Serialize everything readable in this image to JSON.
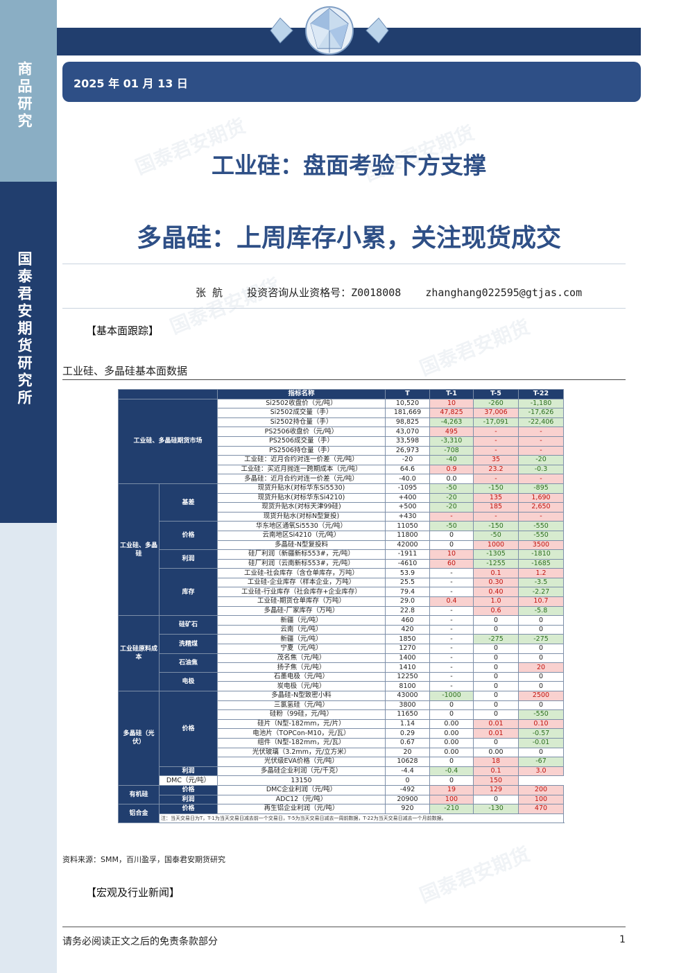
{
  "sidebar": {
    "category": "商品研究",
    "institute": "国泰君安期货研究所"
  },
  "header": {
    "date": "2025 年 01 月 13 日"
  },
  "titles": {
    "main": "工业硅：盘面考验下方支撑",
    "sub": "多晶硅：上周库存小累，关注现货成交"
  },
  "author": {
    "name": "张    航",
    "license": "投资咨询从业资格号：Z0018008",
    "email": "zhanghang022595@gtjas.com"
  },
  "watermark": "国泰君安期货",
  "sections": {
    "fundamentals": "【基本面跟踪】",
    "news": "【宏观及行业新闻】"
  },
  "table": {
    "title": "工业硅、多晶硅基本面数据",
    "headers": [
      "指标名称",
      "T",
      "T-1",
      "T-5",
      "T-22"
    ],
    "rows": [
      {
        "ind": "Si2502收盘价（元/吨）",
        "t": "10,520",
        "t1": "10",
        "t5": "-260",
        "t22": "-1,180",
        "c": [
          "r",
          "g",
          "g"
        ]
      },
      {
        "ind": "Si2502成交量（手）",
        "t": "181,669",
        "t1": "47,825",
        "t5": "37,006",
        "t22": "-17,626",
        "c": [
          "r",
          "r",
          "g"
        ]
      },
      {
        "ind": "Si2502持仓量（手）",
        "t": "98,825",
        "t1": "-4,263",
        "t5": "-17,091",
        "t22": "-22,406",
        "c": [
          "g",
          "g",
          "g"
        ]
      },
      {
        "ind": "PS2506收盘价（元/吨）",
        "t": "43,070",
        "t1": "495",
        "t5": "-",
        "t22": "-",
        "c": [
          "r",
          "r",
          "r"
        ]
      },
      {
        "ind": "PS2506成交量（手）",
        "t": "33,598",
        "t1": "-3,310",
        "t5": "-",
        "t22": "-",
        "c": [
          "g",
          "r",
          "r"
        ]
      },
      {
        "ind": "PS2506持仓量（手）",
        "t": "26,973",
        "t1": "-708",
        "t5": "-",
        "t22": "-",
        "c": [
          "g",
          "r",
          "r"
        ]
      },
      {
        "ind": "工业硅：近月合约对连一价差（元/吨）",
        "t": "-20",
        "t1": "-40",
        "t5": "35",
        "t22": "-20",
        "c": [
          "g",
          "r",
          "g"
        ]
      },
      {
        "ind": "工业硅：买近月抛连一跨期成本（元/吨）",
        "t": "64.6",
        "t1": "0.9",
        "t5": "23.2",
        "t22": "-0.3",
        "c": [
          "r",
          "r",
          "g"
        ]
      },
      {
        "ind": "多晶硅：近月合约对连一价差（元/吨）",
        "t": "-40.0",
        "t1": "0.0",
        "t5": "-",
        "t22": "-",
        "c": [
          "w",
          "r",
          "r"
        ]
      },
      {
        "ind": "现货升贴水(对标华东Si5530)",
        "t": "-1095",
        "t1": "-50",
        "t5": "-150",
        "t22": "-895",
        "c": [
          "g",
          "g",
          "g"
        ]
      },
      {
        "ind": "现货升贴水(对标华东Si4210)",
        "t": "+400",
        "t1": "-20",
        "t5": "135",
        "t22": "1,690",
        "c": [
          "g",
          "r",
          "r"
        ]
      },
      {
        "ind": "现货升贴水(对标天津99硅)",
        "t": "+500",
        "t1": "-20",
        "t5": "185",
        "t22": "2,650",
        "c": [
          "g",
          "r",
          "r"
        ]
      },
      {
        "ind": "现货升贴水(对标N型复投)",
        "t": "+430",
        "t1": "-",
        "t5": "-",
        "t22": "-",
        "c": [
          "r",
          "r",
          "r"
        ]
      },
      {
        "ind": "华东地区通氧Si5530（元/吨）",
        "t": "11050",
        "t1": "-50",
        "t5": "-150",
        "t22": "-550",
        "c": [
          "g",
          "g",
          "g"
        ]
      },
      {
        "ind": "云南地区Si4210（元/吨）",
        "t": "11800",
        "t1": "0",
        "t5": "-50",
        "t22": "-550",
        "c": [
          "w",
          "g",
          "g"
        ]
      },
      {
        "ind": "多晶硅-N型复投料",
        "t": "42000",
        "t1": "0",
        "t5": "1000",
        "t22": "3500",
        "c": [
          "w",
          "r",
          "r"
        ]
      },
      {
        "ind": "硅厂利润（新疆新标553#，元/吨）",
        "t": "-1911",
        "t1": "10",
        "t5": "-1305",
        "t22": "-1810",
        "c": [
          "r",
          "g",
          "g"
        ]
      },
      {
        "ind": "硅厂利润（云南新标553#，元/吨）",
        "t": "-4610",
        "t1": "60",
        "t5": "-1255",
        "t22": "-1685",
        "c": [
          "r",
          "g",
          "g"
        ]
      },
      {
        "ind": "工业硅-社会库存（含仓单库存，万吨）",
        "t": "53.9",
        "t1": "-",
        "t5": "0.1",
        "t22": "1.2",
        "c": [
          "w",
          "r",
          "r"
        ]
      },
      {
        "ind": "工业硅-企业库存（样本企业，万吨）",
        "t": "25.5",
        "t1": "-",
        "t5": "0.30",
        "t22": "-3.5",
        "c": [
          "w",
          "r",
          "g"
        ]
      },
      {
        "ind": "工业硅-行业库存（社会库存+企业库存）",
        "t": "79.4",
        "t1": "-",
        "t5": "0.40",
        "t22": "-2.27",
        "c": [
          "w",
          "r",
          "g"
        ]
      },
      {
        "ind": "工业硅-期货仓单库存（万吨）",
        "t": "29.0",
        "t1": "0.4",
        "t5": "1.0",
        "t22": "10.7",
        "c": [
          "r",
          "r",
          "r"
        ]
      },
      {
        "ind": "多晶硅-厂家库存（万吨）",
        "t": "22.8",
        "t1": "-",
        "t5": "0.6",
        "t22": "-5.8",
        "c": [
          "w",
          "r",
          "g"
        ]
      },
      {
        "ind": "新疆（元/吨）",
        "t": "460",
        "t1": "-",
        "t5": "0",
        "t22": "0",
        "c": [
          "w",
          "w",
          "w"
        ]
      },
      {
        "ind": "云南（元/吨）",
        "t": "420",
        "t1": "-",
        "t5": "0",
        "t22": "0",
        "c": [
          "w",
          "w",
          "w"
        ]
      },
      {
        "ind": "新疆（元/吨）",
        "t": "1850",
        "t1": "-",
        "t5": "-275",
        "t22": "-275",
        "c": [
          "w",
          "g",
          "g"
        ]
      },
      {
        "ind": "宁夏（元/吨）",
        "t": "1270",
        "t1": "-",
        "t5": "0",
        "t22": "0",
        "c": [
          "w",
          "w",
          "w"
        ]
      },
      {
        "ind": "茂名焦（元/吨）",
        "t": "1400",
        "t1": "-",
        "t5": "0",
        "t22": "0",
        "c": [
          "w",
          "w",
          "w"
        ]
      },
      {
        "ind": "扬子焦（元/吨）",
        "t": "1410",
        "t1": "-",
        "t5": "0",
        "t22": "20",
        "c": [
          "w",
          "w",
          "r"
        ]
      },
      {
        "ind": "石墨电极（元/吨）",
        "t": "12250",
        "t1": "-",
        "t5": "0",
        "t22": "0",
        "c": [
          "w",
          "w",
          "w"
        ]
      },
      {
        "ind": "炭电极（元/吨）",
        "t": "8100",
        "t1": "-",
        "t5": "0",
        "t22": "0",
        "c": [
          "w",
          "w",
          "w"
        ]
      },
      {
        "ind": "多晶硅-N型致密小料",
        "t": "43000",
        "t1": "-1000",
        "t5": "0",
        "t22": "2500",
        "c": [
          "g",
          "w",
          "r"
        ]
      },
      {
        "ind": "三氯氢硅（元/吨）",
        "t": "3800",
        "t1": "0",
        "t5": "0",
        "t22": "0",
        "c": [
          "w",
          "w",
          "w"
        ]
      },
      {
        "ind": "硅粉（99硅，元/吨）",
        "t": "11650",
        "t1": "0",
        "t5": "0",
        "t22": "-550",
        "c": [
          "w",
          "w",
          "g"
        ]
      },
      {
        "ind": "硅片（N型-182mm，元/片）",
        "t": "1.14",
        "t1": "0.00",
        "t5": "0.01",
        "t22": "0.10",
        "c": [
          "w",
          "r",
          "r"
        ]
      },
      {
        "ind": "电池片（TOPCon-M10，元/瓦）",
        "t": "0.29",
        "t1": "0.00",
        "t5": "0.01",
        "t22": "-0.57",
        "c": [
          "w",
          "r",
          "g"
        ]
      },
      {
        "ind": "组件（N型-182mm，元/瓦）",
        "t": "0.67",
        "t1": "0.00",
        "t5": "0",
        "t22": "-0.01",
        "c": [
          "w",
          "w",
          "g"
        ]
      },
      {
        "ind": "光伏玻璃（3.2mm，元/立方米）",
        "t": "20",
        "t1": "0.00",
        "t5": "0.00",
        "t22": "0",
        "c": [
          "w",
          "w",
          "w"
        ]
      },
      {
        "ind": "光伏级EVA价格（元/吨）",
        "t": "10628",
        "t1": "0",
        "t5": "18",
        "t22": "-67",
        "c": [
          "w",
          "r",
          "g"
        ]
      },
      {
        "ind": "多晶硅企业利润（元/千克）",
        "t": "-4.4",
        "t1": "-0.4",
        "t5": "0.1",
        "t22": "3.0",
        "c": [
          "g",
          "r",
          "r"
        ]
      },
      {
        "ind": "DMC（元/吨）",
        "t": "13150",
        "t1": "0",
        "t5": "0",
        "t22": "150",
        "c": [
          "w",
          "w",
          "r"
        ]
      },
      {
        "ind": "DMC企业利润（元/吨）",
        "t": "-492",
        "t1": "19",
        "t5": "129",
        "t22": "200",
        "c": [
          "r",
          "r",
          "r"
        ]
      },
      {
        "ind": "ADC12（元/吨）",
        "t": "20900",
        "t1": "100",
        "t5": "0",
        "t22": "100",
        "c": [
          "r",
          "w",
          "r"
        ]
      },
      {
        "ind": "再生铝企业利润（元/吨）",
        "t": "920",
        "t1": "-210",
        "t5": "-130",
        "t22": "470",
        "c": [
          "g",
          "g",
          "r"
        ]
      }
    ],
    "groups": {
      "futures": "工业硅、多晶硅期货市场",
      "ip": "工业硅、多晶硅",
      "raw": "工业硅原料成本",
      "poly": "多晶硅（光伏）",
      "organic": "有机硅",
      "alloy": "铝合金"
    },
    "subgroups": {
      "basis": "基差",
      "price": "价格",
      "profit": "利润",
      "inventory": "库存",
      "ore": "硅矿石",
      "coal": "洗精煤",
      "coke": "石油焦",
      "electrode": "电极",
      "poly_price": "价格",
      "poly_profit": "利润",
      "org_price": "价格",
      "org_profit": "利润",
      "al_price": "价格",
      "al_profit": "利润"
    },
    "note": "注：当天交易日为T，T-1为当天交易日减去前一个交易日，T-5为当天交易日减去一周前数据，T-22为当天交易日减去一个月前数据。"
  },
  "source": "资料来源：SMM，百川盈孚，国泰君安期货研究",
  "footer": {
    "disclaimer": "请务必阅读正文之后的免责条款部分",
    "page": "1"
  },
  "colors": {
    "navy": "#213e6e",
    "blue": "#2e4f86",
    "up_bg": "#f9d1cf",
    "up_text": "#c0140f",
    "down_bg": "#d7ebcf",
    "down_text": "#2d6f1f"
  }
}
